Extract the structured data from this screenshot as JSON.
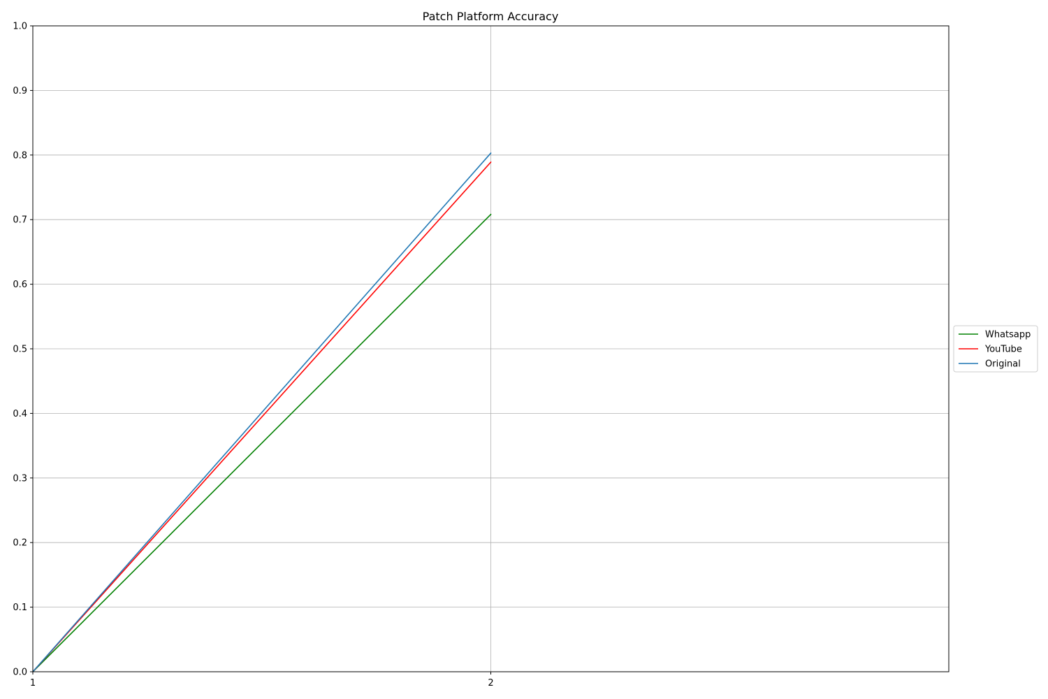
{
  "chart_data": {
    "type": "line",
    "title": "Patch Platform Accuracy",
    "xlabel": "",
    "ylabel": "",
    "x": [
      1,
      2
    ],
    "xlim": [
      1,
      3
    ],
    "ylim": [
      0,
      1
    ],
    "x_ticks": [
      "1",
      "2"
    ],
    "y_ticks": [
      "0.0",
      "0.1",
      "0.2",
      "0.3",
      "0.4",
      "0.5",
      "0.6",
      "0.7",
      "0.8",
      "0.9",
      "1.0"
    ],
    "grid": true,
    "legend_position": "center-right outside",
    "series": [
      {
        "name": "Whatsapp",
        "values": [
          0.0,
          0.708
        ],
        "color": "#008000"
      },
      {
        "name": "YouTube",
        "values": [
          0.0,
          0.789
        ],
        "color": "#ff0000"
      },
      {
        "name": "Original",
        "values": [
          0.0,
          0.803
        ],
        "color": "#1f77b4"
      }
    ]
  }
}
